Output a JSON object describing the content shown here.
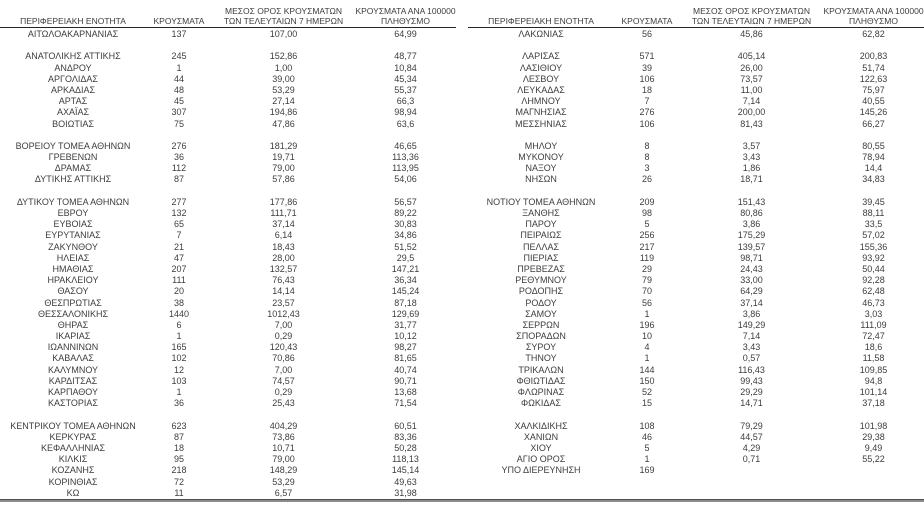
{
  "colors": {
    "text": "#3d3d3d",
    "header_rule": "#262626",
    "bottom_rule": "#8c8c8c"
  },
  "columns": {
    "region": "ΠΕΡΙΦΕΡΕΙΑΚΗ ΕΝΟΤΗΤΑ",
    "cases": "ΚΡΟΥΣΜΑΤΑ",
    "avg7_line1": "ΜΕΣΟΣ ΟΡΟΣ ΚΡΟΥΣΜΑΤΩΝ",
    "avg7_line2": "ΤΩΝ ΤΕΛΕΥΤΑΙΩΝ 7 ΗΜΕΡΩΝ",
    "per100k_line1": "ΚΡΟΥΣΜΑΤΑ ΑΝΑ 100000",
    "per100k_line2": "ΠΛΗΘΥΣΜΟ"
  },
  "left_table": {
    "groups": [
      [
        {
          "name": "ΑΙΤΩΛΟΑΚΑΡΝΑΝΙΑΣ",
          "cases": "137",
          "avg7": "107,00",
          "per100k": "64,99"
        }
      ],
      [
        {
          "name": "ΑΝΑΤΟΛΙΚΗΣ ΑΤΤΙΚΗΣ",
          "cases": "245",
          "avg7": "152,86",
          "per100k": "48,77"
        },
        {
          "name": "ΑΝΔΡΟΥ",
          "cases": "1",
          "avg7": "1,00",
          "per100k": "10,84"
        },
        {
          "name": "ΑΡΓΟΛΙΔΑΣ",
          "cases": "44",
          "avg7": "39,00",
          "per100k": "45,34"
        },
        {
          "name": "ΑΡΚΑΔΙΑΣ",
          "cases": "48",
          "avg7": "53,29",
          "per100k": "55,37"
        },
        {
          "name": "ΑΡΤΑΣ",
          "cases": "45",
          "avg7": "27,14",
          "per100k": "66,3"
        },
        {
          "name": "ΑΧΑΪΑΣ",
          "cases": "307",
          "avg7": "194,86",
          "per100k": "98,94"
        },
        {
          "name": "ΒΟΙΩΤΙΑΣ",
          "cases": "75",
          "avg7": "47,86",
          "per100k": "63,6"
        }
      ],
      [
        {
          "name": "ΒΟΡΕΙΟΥ ΤΟΜΕΑ ΑΘΗΝΩΝ",
          "cases": "276",
          "avg7": "181,29",
          "per100k": "46,65"
        },
        {
          "name": "ΓΡΕΒΕΝΩΝ",
          "cases": "36",
          "avg7": "19,71",
          "per100k": "113,36"
        },
        {
          "name": "ΔΡΑΜΑΣ",
          "cases": "112",
          "avg7": "79,00",
          "per100k": "113,95"
        },
        {
          "name": "ΔΥΤΙΚΗΣ ΑΤΤΙΚΗΣ",
          "cases": "87",
          "avg7": "57,86",
          "per100k": "54,06"
        }
      ],
      [
        {
          "name": "ΔΥΤΙΚΟΥ ΤΟΜΕΑ ΑΘΗΝΩΝ",
          "cases": "277",
          "avg7": "177,86",
          "per100k": "56,57"
        },
        {
          "name": "ΕΒΡΟΥ",
          "cases": "132",
          "avg7": "111,71",
          "per100k": "89,22"
        },
        {
          "name": "ΕΥΒΟΙΑΣ",
          "cases": "65",
          "avg7": "37,14",
          "per100k": "30,83"
        },
        {
          "name": "ΕΥΡΥΤΑΝΙΑΣ",
          "cases": "7",
          "avg7": "6,14",
          "per100k": "34,86"
        },
        {
          "name": "ΖΑΚΥΝΘΟΥ",
          "cases": "21",
          "avg7": "18,43",
          "per100k": "51,52"
        },
        {
          "name": "ΗΛΕΙΑΣ",
          "cases": "47",
          "avg7": "28,00",
          "per100k": "29,5"
        },
        {
          "name": "ΗΜΑΘΙΑΣ",
          "cases": "207",
          "avg7": "132,57",
          "per100k": "147,21"
        },
        {
          "name": "ΗΡΑΚΛΕΙΟΥ",
          "cases": "111",
          "avg7": "76,43",
          "per100k": "36,34"
        },
        {
          "name": "ΘΑΣΟΥ",
          "cases": "20",
          "avg7": "14,14",
          "per100k": "145,24"
        },
        {
          "name": "ΘΕΣΠΡΩΤΙΑΣ",
          "cases": "38",
          "avg7": "23,57",
          "per100k": "87,18"
        },
        {
          "name": "ΘΕΣΣΑΛΟΝΙΚΗΣ",
          "cases": "1440",
          "avg7": "1012,43",
          "per100k": "129,69"
        },
        {
          "name": "ΘΗΡΑΣ",
          "cases": "6",
          "avg7": "7,00",
          "per100k": "31,77"
        },
        {
          "name": "ΙΚΑΡΙΑΣ",
          "cases": "1",
          "avg7": "0,29",
          "per100k": "10,12"
        },
        {
          "name": "ΙΩΑΝΝΙΝΩΝ",
          "cases": "165",
          "avg7": "120,43",
          "per100k": "98,27"
        },
        {
          "name": "ΚΑΒΑΛΑΣ",
          "cases": "102",
          "avg7": "70,86",
          "per100k": "81,65"
        },
        {
          "name": "ΚΑΛΥΜΝΟΥ",
          "cases": "12",
          "avg7": "7,00",
          "per100k": "40,74"
        },
        {
          "name": "ΚΑΡΔΙΤΣΑΣ",
          "cases": "103",
          "avg7": "74,57",
          "per100k": "90,71"
        },
        {
          "name": "ΚΑΡΠΑΘΟΥ",
          "cases": "1",
          "avg7": "0,29",
          "per100k": "13,68"
        },
        {
          "name": "ΚΑΣΤΟΡΙΑΣ",
          "cases": "36",
          "avg7": "25,43",
          "per100k": "71,54"
        }
      ],
      [
        {
          "name": "ΚΕΝΤΡΙΚΟΥ ΤΟΜΕΑ ΑΘΗΝΩΝ",
          "cases": "623",
          "avg7": "404,29",
          "per100k": "60,51"
        },
        {
          "name": "ΚΕΡΚΥΡΑΣ",
          "cases": "87",
          "avg7": "73,86",
          "per100k": "83,36"
        },
        {
          "name": "ΚΕΦΑΛΛΗΝΙΑΣ",
          "cases": "18",
          "avg7": "10,71",
          "per100k": "50,28"
        },
        {
          "name": "ΚΙΛΚΙΣ",
          "cases": "95",
          "avg7": "79,00",
          "per100k": "118,13"
        },
        {
          "name": "ΚΟΖΑΝΗΣ",
          "cases": "218",
          "avg7": "148,29",
          "per100k": "145,14"
        },
        {
          "name": "ΚΟΡΙΝΘΙΑΣ",
          "cases": "72",
          "avg7": "53,29",
          "per100k": "49,63"
        },
        {
          "name": "ΚΩ",
          "cases": "11",
          "avg7": "6,57",
          "per100k": "31,98"
        }
      ]
    ]
  },
  "right_table": {
    "groups": [
      [
        {
          "name": "ΛΑΚΩΝΙΑΣ",
          "cases": "56",
          "avg7": "45,86",
          "per100k": "62,82"
        }
      ],
      [
        {
          "name": "ΛΑΡΙΣΑΣ",
          "cases": "571",
          "avg7": "405,14",
          "per100k": "200,83"
        },
        {
          "name": "ΛΑΣΙΘΙΟΥ",
          "cases": "39",
          "avg7": "26,00",
          "per100k": "51,74"
        },
        {
          "name": "ΛΕΣΒΟΥ",
          "cases": "106",
          "avg7": "73,57",
          "per100k": "122,63"
        },
        {
          "name": "ΛΕΥΚΑΔΑΣ",
          "cases": "18",
          "avg7": "11,00",
          "per100k": "75,97"
        },
        {
          "name": "ΛΗΜΝΟΥ",
          "cases": "7",
          "avg7": "7,14",
          "per100k": "40,55"
        },
        {
          "name": "ΜΑΓΝΗΣΙΑΣ",
          "cases": "276",
          "avg7": "200,00",
          "per100k": "145,26"
        },
        {
          "name": "ΜΕΣΣΗΝΙΑΣ",
          "cases": "106",
          "avg7": "81,43",
          "per100k": "66,27"
        }
      ],
      [
        {
          "name": "ΜΗΛΟΥ",
          "cases": "8",
          "avg7": "3,57",
          "per100k": "80,55"
        },
        {
          "name": "ΜΥΚΟΝΟΥ",
          "cases": "8",
          "avg7": "3,43",
          "per100k": "78,94"
        },
        {
          "name": "ΝΑΞΟΥ",
          "cases": "3",
          "avg7": "1,86",
          "per100k": "14,4"
        },
        {
          "name": "ΝΗΣΩΝ",
          "cases": "26",
          "avg7": "18,71",
          "per100k": "34,83"
        }
      ],
      [
        {
          "name": "ΝΟΤΙΟΥ ΤΟΜΕΑ ΑΘΗΝΩΝ",
          "cases": "209",
          "avg7": "151,43",
          "per100k": "39,45"
        },
        {
          "name": "ΞΑΝΘΗΣ",
          "cases": "98",
          "avg7": "80,86",
          "per100k": "88,11"
        },
        {
          "name": "ΠΑΡΟΥ",
          "cases": "5",
          "avg7": "3,86",
          "per100k": "33,5"
        },
        {
          "name": "ΠΕΙΡΑΙΩΣ",
          "cases": "256",
          "avg7": "175,29",
          "per100k": "57,02"
        },
        {
          "name": "ΠΕΛΛΑΣ",
          "cases": "217",
          "avg7": "139,57",
          "per100k": "155,36"
        },
        {
          "name": "ΠΙΕΡΙΑΣ",
          "cases": "119",
          "avg7": "98,71",
          "per100k": "93,92"
        },
        {
          "name": "ΠΡΕΒΕΖΑΣ",
          "cases": "29",
          "avg7": "24,43",
          "per100k": "50,44"
        },
        {
          "name": "ΡΕΘΥΜΝΟΥ",
          "cases": "79",
          "avg7": "33,00",
          "per100k": "92,28"
        },
        {
          "name": "ΡΟΔΟΠΗΣ",
          "cases": "70",
          "avg7": "64,29",
          "per100k": "62,48"
        },
        {
          "name": "ΡΟΔΟΥ",
          "cases": "56",
          "avg7": "37,14",
          "per100k": "46,73"
        },
        {
          "name": "ΣΑΜΟΥ",
          "cases": "1",
          "avg7": "3,86",
          "per100k": "3,03"
        },
        {
          "name": "ΣΕΡΡΩΝ",
          "cases": "196",
          "avg7": "149,29",
          "per100k": "111,09"
        },
        {
          "name": "ΣΠΟΡΑΔΩΝ",
          "cases": "10",
          "avg7": "7,14",
          "per100k": "72,47"
        },
        {
          "name": "ΣΥΡΟΥ",
          "cases": "4",
          "avg7": "3,43",
          "per100k": "18,6"
        },
        {
          "name": "ΤΗΝΟΥ",
          "cases": "1",
          "avg7": "0,57",
          "per100k": "11,58"
        },
        {
          "name": "ΤΡΙΚΑΛΩΝ",
          "cases": "144",
          "avg7": "116,43",
          "per100k": "109,85"
        },
        {
          "name": "ΦΘΙΩΤΙΔΑΣ",
          "cases": "150",
          "avg7": "99,43",
          "per100k": "94,8"
        },
        {
          "name": "ΦΛΩΡΙΝΑΣ",
          "cases": "52",
          "avg7": "29,29",
          "per100k": "101,14"
        },
        {
          "name": "ΦΩΚΙΔΑΣ",
          "cases": "15",
          "avg7": "14,71",
          "per100k": "37,18"
        }
      ],
      [
        {
          "name": "ΧΑΛΚΙΔΙΚΗΣ",
          "cases": "108",
          "avg7": "79,29",
          "per100k": "101,98"
        },
        {
          "name": "ΧΑΝΙΩΝ",
          "cases": "46",
          "avg7": "44,57",
          "per100k": "29,38"
        },
        {
          "name": "ΧΙΟΥ",
          "cases": "5",
          "avg7": "4,29",
          "per100k": "9,49"
        },
        {
          "name": "ΑΓΙΟ ΟΡΟΣ",
          "cases": "1",
          "avg7": "0,71",
          "per100k": "55,22"
        },
        {
          "name": "ΥΠΟ ΔΙΕΡΕΥΝΗΣΗ",
          "cases": "169",
          "avg7": "",
          "per100k": ""
        }
      ]
    ]
  }
}
